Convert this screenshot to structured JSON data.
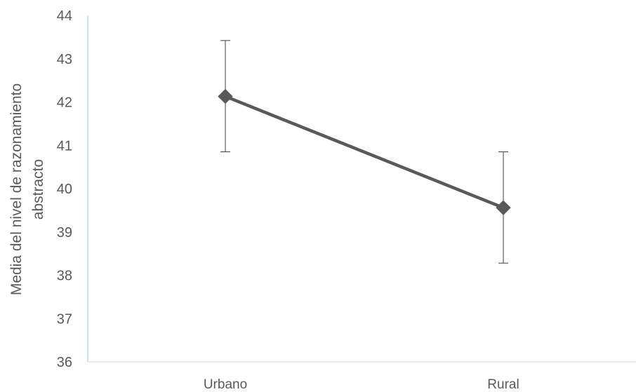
{
  "chart_data": {
    "type": "line",
    "categories": [
      "Urbano",
      "Rural"
    ],
    "series": [
      {
        "values": [
          42.13,
          39.56
        ],
        "error_upper": [
          43.42,
          40.85
        ],
        "error_lower": [
          40.85,
          38.28
        ],
        "color": "#595959",
        "marker": "diamond"
      }
    ],
    "ylim": [
      36,
      44
    ],
    "yticks": [
      36,
      37,
      38,
      39,
      40,
      41,
      42,
      43,
      44
    ],
    "ylabel_lines": [
      "Media del nivel de razonamiento",
      "abstracto"
    ],
    "xlabel": "",
    "title": "",
    "grid": false,
    "legend": false,
    "colors": {
      "axis_y": "#bdd7ee",
      "axis_x": "#d9d9d9",
      "text": "#595959",
      "errorbar": "#404040"
    }
  }
}
